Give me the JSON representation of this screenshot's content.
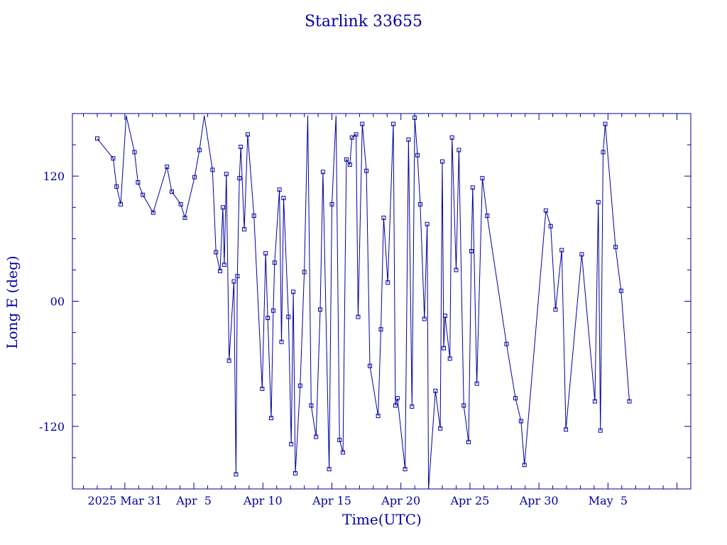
{
  "chart_data": {
    "type": "line",
    "title": "Starlink 33655",
    "xlabel": "Time(UTC)",
    "ylabel": "Long E (deg)",
    "x_tick_labels": [
      "2025 Mar 31",
      "Apr  5",
      "Apr 10",
      "Apr 15",
      "Apr 20",
      "Apr 25",
      "Apr 30",
      "May  5"
    ],
    "x_tick_dates": [
      "2025-03-31",
      "2025-04-05",
      "2025-04-10",
      "2025-04-15",
      "2025-04-20",
      "2025-04-25",
      "2025-04-30",
      "2025-05-05"
    ],
    "xlim": [
      "2025-03-27T04:48",
      "2025-05-11T00:00"
    ],
    "y_tick_labels": [
      "120",
      "00",
      "-120"
    ],
    "y_tick_values": [
      120,
      0,
      -120
    ],
    "ylim": [
      -180,
      180
    ],
    "grid": false,
    "line_color": "#0000a0",
    "x_unit": "days since 2025 Mar 31 00:00 UTC",
    "points": [
      [
        -2.0,
        156
      ],
      [
        -0.85,
        137
      ],
      [
        -0.6,
        110
      ],
      [
        -0.3,
        93
      ],
      [
        0.1,
        178
      ],
      [
        0.7,
        143
      ],
      [
        0.95,
        114
      ],
      [
        1.3,
        102
      ],
      [
        2.05,
        85
      ],
      [
        3.05,
        129
      ],
      [
        3.4,
        105
      ],
      [
        4.05,
        93
      ],
      [
        4.35,
        80
      ],
      [
        5.05,
        119
      ],
      [
        5.4,
        145
      ],
      [
        5.75,
        178
      ],
      [
        6.35,
        126
      ],
      [
        6.6,
        47
      ],
      [
        6.9,
        29
      ],
      [
        7.1,
        90
      ],
      [
        7.2,
        35
      ],
      [
        7.35,
        122
      ],
      [
        7.55,
        -57
      ],
      [
        7.9,
        19
      ],
      [
        8.05,
        -166
      ],
      [
        8.15,
        24
      ],
      [
        8.3,
        118
      ],
      [
        8.4,
        148
      ],
      [
        8.65,
        69
      ],
      [
        8.9,
        160
      ],
      [
        9.35,
        82
      ],
      [
        9.95,
        -84
      ],
      [
        10.2,
        46
      ],
      [
        10.35,
        -16
      ],
      [
        10.6,
        -112
      ],
      [
        10.75,
        -9
      ],
      [
        10.85,
        37
      ],
      [
        11.2,
        107
      ],
      [
        11.35,
        -39
      ],
      [
        11.5,
        99
      ],
      [
        11.85,
        -15
      ],
      [
        12.05,
        -137
      ],
      [
        12.2,
        9
      ],
      [
        12.35,
        -165
      ],
      [
        12.7,
        -81
      ],
      [
        13.0,
        28
      ],
      [
        13.25,
        178
      ],
      [
        13.5,
        -100
      ],
      [
        13.85,
        -130
      ],
      [
        14.15,
        -8
      ],
      [
        14.35,
        124
      ],
      [
        14.8,
        -161
      ],
      [
        15.0,
        93
      ],
      [
        15.3,
        178
      ],
      [
        15.55,
        -133
      ],
      [
        15.8,
        -145
      ],
      [
        16.05,
        136
      ],
      [
        16.3,
        131
      ],
      [
        16.45,
        157
      ],
      [
        16.75,
        160
      ],
      [
        16.9,
        -15
      ],
      [
        17.2,
        170
      ],
      [
        17.5,
        125
      ],
      [
        17.75,
        -62
      ],
      [
        18.35,
        -110
      ],
      [
        18.55,
        -27
      ],
      [
        18.75,
        80
      ],
      [
        19.05,
        18
      ],
      [
        19.45,
        170
      ],
      [
        19.6,
        -100
      ],
      [
        19.75,
        -93
      ],
      [
        20.3,
        -161
      ],
      [
        20.55,
        155
      ],
      [
        20.8,
        -101
      ],
      [
        21.0,
        176
      ],
      [
        21.2,
        140
      ],
      [
        21.4,
        93
      ],
      [
        21.7,
        -17
      ],
      [
        21.9,
        74
      ],
      [
        22.0,
        -180
      ],
      [
        22.5,
        -86
      ],
      [
        22.85,
        -122
      ],
      [
        23.0,
        134
      ],
      [
        23.1,
        -45
      ],
      [
        23.2,
        -14
      ],
      [
        23.55,
        -55
      ],
      [
        23.7,
        157
      ],
      [
        24.0,
        30
      ],
      [
        24.2,
        145
      ],
      [
        24.55,
        -100
      ],
      [
        24.9,
        -135
      ],
      [
        25.1,
        48
      ],
      [
        25.2,
        109
      ],
      [
        25.5,
        -79
      ],
      [
        25.9,
        118
      ],
      [
        26.25,
        82
      ],
      [
        27.65,
        -41
      ],
      [
        28.3,
        -93
      ],
      [
        28.7,
        -115
      ],
      [
        28.95,
        -157
      ],
      [
        30.5,
        87
      ],
      [
        30.85,
        72
      ],
      [
        31.2,
        -8
      ],
      [
        31.65,
        49
      ],
      [
        31.95,
        -123
      ],
      [
        33.1,
        45
      ],
      [
        34.05,
        -96
      ],
      [
        34.3,
        95
      ],
      [
        34.45,
        -124
      ],
      [
        34.65,
        143
      ],
      [
        34.8,
        170
      ],
      [
        35.55,
        52
      ],
      [
        35.95,
        10
      ],
      [
        36.55,
        -96
      ]
    ]
  }
}
